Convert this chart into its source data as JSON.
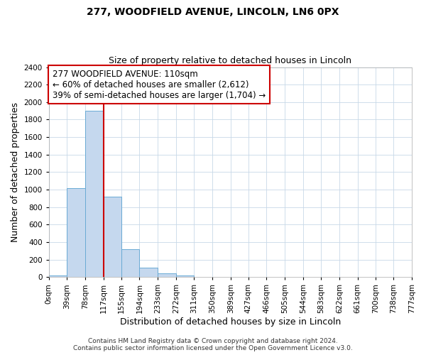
{
  "title_line1": "277, WOODFIELD AVENUE, LINCOLN, LN6 0PX",
  "title_line2": "Size of property relative to detached houses in Lincoln",
  "xlabel": "Distribution of detached houses by size in Lincoln",
  "ylabel": "Number of detached properties",
  "bin_edges": [
    0,
    39,
    78,
    117,
    155,
    194,
    233,
    272,
    311,
    350,
    389,
    427,
    466,
    505,
    544,
    583,
    622,
    661,
    700,
    738,
    777
  ],
  "bin_labels": [
    "0sqm",
    "39sqm",
    "78sqm",
    "117sqm",
    "155sqm",
    "194sqm",
    "233sqm",
    "272sqm",
    "311sqm",
    "350sqm",
    "389sqm",
    "427sqm",
    "466sqm",
    "505sqm",
    "544sqm",
    "583sqm",
    "622sqm",
    "661sqm",
    "700sqm",
    "738sqm",
    "777sqm"
  ],
  "counts": [
    20,
    1020,
    1900,
    920,
    320,
    105,
    45,
    20,
    5,
    0,
    0,
    0,
    0,
    0,
    0,
    0,
    0,
    0,
    0,
    0
  ],
  "bar_color": "#c5d8ee",
  "bar_edge_color": "#6aaad4",
  "property_line_x": 117,
  "property_line_color": "#cc0000",
  "annotation_text_line1": "277 WOODFIELD AVENUE: 110sqm",
  "annotation_text_line2": "← 60% of detached houses are smaller (2,612)",
  "annotation_text_line3": "39% of semi-detached houses are larger (1,704) →",
  "annotation_box_color": "#ffffff",
  "annotation_box_edge_color": "#cc0000",
  "ylim": [
    0,
    2400
  ],
  "yticks": [
    0,
    200,
    400,
    600,
    800,
    1000,
    1200,
    1400,
    1600,
    1800,
    2000,
    2200,
    2400
  ],
  "footer_line1": "Contains HM Land Registry data © Crown copyright and database right 2024.",
  "footer_line2": "Contains public sector information licensed under the Open Government Licence v3.0.",
  "background_color": "#ffffff",
  "plot_background_color": "#ffffff",
  "grid_color": "#c8d8e8",
  "title_fontsize": 10,
  "subtitle_fontsize": 9,
  "axis_label_fontsize": 9,
  "tick_fontsize": 7.5,
  "annotation_fontsize": 8.5,
  "footer_fontsize": 6.5
}
